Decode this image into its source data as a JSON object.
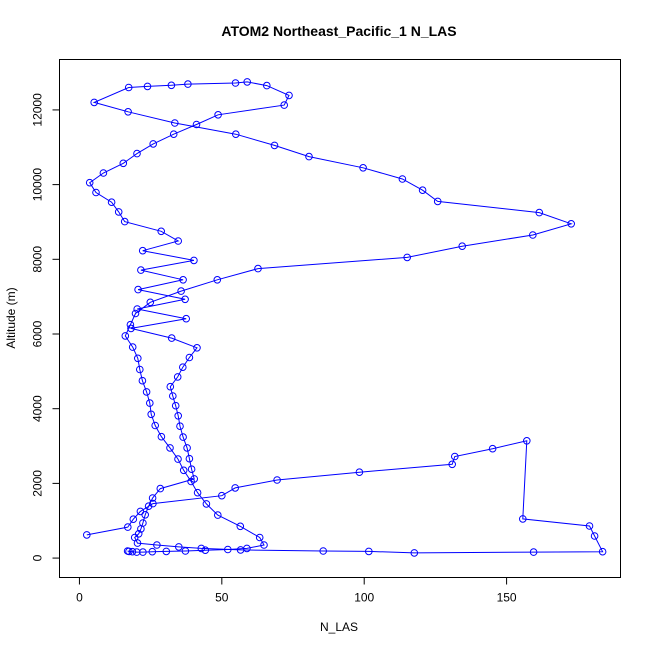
{
  "chart_data": {
    "type": "line",
    "title": "ATOM2 Northeast_Pacific_1 N_LAS",
    "xlabel": "N_LAS",
    "ylabel": "Altitude (m)",
    "xlim": [
      -7,
      190
    ],
    "ylim": [
      -520,
      13350
    ],
    "xticks": [
      0,
      50,
      100,
      150
    ],
    "yticks": [
      0,
      2000,
      4000,
      6000,
      8000,
      10000,
      12000
    ],
    "grid": false,
    "legend": "none",
    "line_color": "#0000ff",
    "series": [
      {
        "x": [
          2.6,
          17,
          18.9,
          21.4,
          25.8,
          50,
          54.7,
          69.4,
          98.3,
          130.9,
          131.8,
          145.1,
          157.1,
          155.7,
          179.1,
          180.9,
          183.7,
          159.5,
          117.6,
          101.6,
          85.6,
          56.6,
          42.8,
          34.9,
          27.2,
          20.4,
          19.4,
          20.8,
          21.6,
          22.3,
          23.1,
          24.3,
          25.7,
          28.4,
          40.3,
          39.4,
          38.6,
          37.8,
          36.4,
          35.3,
          34.7,
          33.8,
          32.8,
          31.9,
          34.5,
          36.3,
          38.6,
          41.3,
          32.4,
          18.1,
          37.5,
          20.3,
          37.1,
          20.6,
          36.4,
          21.6,
          40.2,
          22.2,
          34.7,
          28.7,
          15.9,
          13.8,
          11.3,
          5.8,
          3.6,
          8.4,
          15.4,
          20.2,
          25.9,
          33.1,
          41.1,
          48.7,
          71.9,
          73.6,
          65.8,
          58.9,
          54.8,
          38.1,
          32.3,
          23.9,
          17.3,
          5.2,
          17.1,
          33.5,
          54.9,
          68.5,
          80.6,
          99.6,
          113.4,
          120.5,
          125.8,
          161.5,
          172.7,
          159.2,
          134.4,
          115.1,
          62.7,
          48.4,
          35.7,
          24.9,
          19.7,
          17.9,
          16.1,
          18.7,
          20.5,
          21.2,
          22.1,
          23.6,
          24.7,
          25.2,
          26.6,
          28.8,
          31.8,
          34.6,
          36.6,
          39.2,
          41.5,
          44.6,
          48.6,
          56.5,
          63.3,
          64.8,
          58.8,
          52.1,
          44.2,
          37.2,
          30.5,
          25.6,
          22.3,
          20.1,
          18.6,
          17.4,
          16.9
        ],
        "y": [
          620,
          830,
          1040,
          1250,
          1460,
          1670,
          1880,
          2090,
          2300,
          2510,
          2720,
          2930,
          3140,
          1050,
          860,
          590,
          170,
          160,
          140,
          180,
          190,
          220,
          260,
          300,
          350,
          400,
          550,
          650,
          780,
          940,
          1160,
          1390,
          1610,
          1860,
          2120,
          2380,
          2660,
          2950,
          3240,
          3530,
          3810,
          4080,
          4340,
          4590,
          4850,
          5110,
          5370,
          5630,
          5890,
          6150,
          6410,
          6670,
          6930,
          7190,
          7450,
          7710,
          7970,
          8230,
          8490,
          8750,
          9010,
          9270,
          9530,
          9790,
          10050,
          10310,
          10570,
          10830,
          11090,
          11350,
          11610,
          11870,
          12130,
          12390,
          12650,
          12750,
          12720,
          12690,
          12660,
          12630,
          12600,
          12200,
          11950,
          11650,
          11350,
          11050,
          10750,
          10450,
          10150,
          9850,
          9550,
          9250,
          8950,
          8650,
          8350,
          8050,
          7750,
          7450,
          7150,
          6850,
          6550,
          6250,
          5950,
          5650,
          5350,
          5050,
          4750,
          4450,
          4150,
          3850,
          3550,
          3250,
          2950,
          2650,
          2350,
          2050,
          1750,
          1450,
          1150,
          850,
          550,
          350,
          260,
          230,
          210,
          190,
          180,
          170,
          160,
          160,
          170,
          180,
          190
        ],
        "points": true
      }
    ]
  }
}
